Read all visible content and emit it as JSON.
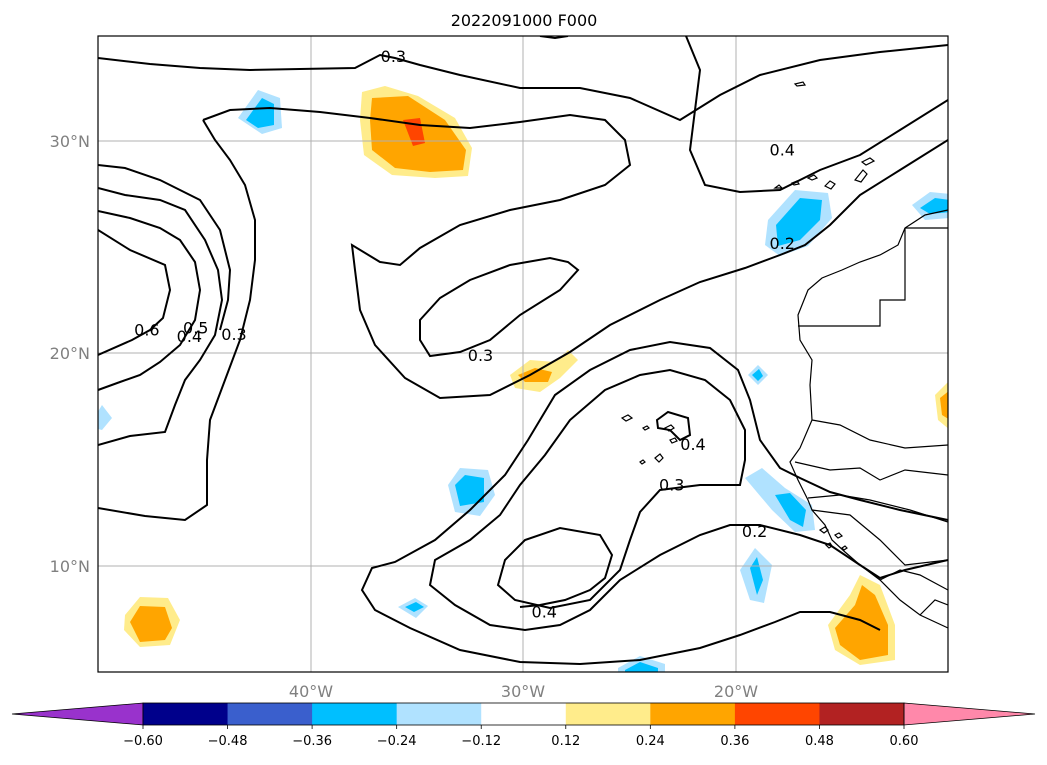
{
  "title": "2022091000 F000",
  "map": {
    "lat_labels": [
      "30°N",
      "20°N",
      "10°N"
    ],
    "lon_labels": [
      "40°W",
      "30°W",
      "20°W"
    ],
    "lat_values": [
      30,
      20,
      10
    ],
    "lon_values": [
      -40,
      -30,
      -20
    ],
    "extent": {
      "lon": [
        -50,
        -10
      ],
      "lat": [
        5,
        35
      ]
    },
    "contour_line_color": "#000000",
    "coastline_color": "#000000",
    "gridline_color": "#b0b0b0",
    "contour_labels": [
      {
        "text": "0.3",
        "lon": -36.1,
        "lat": 34.0
      },
      {
        "text": "0.4",
        "lon": -17.8,
        "lat": 29.6
      },
      {
        "text": "0.2",
        "lon": -17.8,
        "lat": 25.2
      },
      {
        "text": "0.6",
        "lon": -47.7,
        "lat": 21.1
      },
      {
        "text": "0.5",
        "lon": -45.4,
        "lat": 21.2
      },
      {
        "text": "0.4",
        "lon": -45.7,
        "lat": 20.8
      },
      {
        "text": "0.3",
        "lon": -43.6,
        "lat": 20.9
      },
      {
        "text": "0.3",
        "lon": -32.0,
        "lat": 19.9
      },
      {
        "text": "0.4",
        "lon": -22.0,
        "lat": 15.7
      },
      {
        "text": "0.3",
        "lon": -23.0,
        "lat": 13.8
      },
      {
        "text": "0.2",
        "lon": -19.1,
        "lat": 11.6
      },
      {
        "text": "0.4",
        "lon": -29.0,
        "lat": 7.8
      }
    ]
  },
  "colorbar": {
    "ticks": [
      "-0.60",
      "-0.48",
      "-0.36",
      "-0.24",
      "-0.12",
      "0.12",
      "0.24",
      "0.36",
      "0.48",
      "0.60"
    ],
    "tick_values": [
      -0.6,
      -0.48,
      -0.36,
      -0.24,
      -0.12,
      0.12,
      0.24,
      0.36,
      0.48,
      0.6
    ],
    "under_color": "#9932cc",
    "over_color": "#ff88aa",
    "colors": [
      "#00008b",
      "#3a5fcd",
      "#00bfff",
      "#b0e2ff",
      "#ffffff",
      "#ffec8b",
      "#ffa500",
      "#ff4500",
      "#b22222"
    ]
  }
}
